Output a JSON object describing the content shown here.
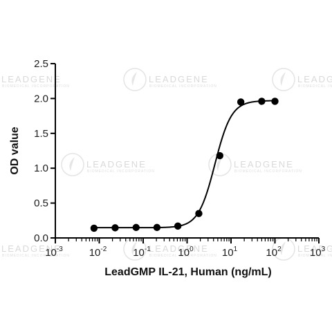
{
  "chart_data": {
    "type": "scatter",
    "xlabel": "LeadGMP IL-21, Human (ng/mL)",
    "ylabel": "OD value",
    "xscale": "log",
    "xlim": [
      0.001,
      1000
    ],
    "ylim": [
      0,
      2.5
    ],
    "x_ticks": [
      {
        "base": "10",
        "exp": "-3",
        "value": 0.001
      },
      {
        "base": "10",
        "exp": "-2",
        "value": 0.01
      },
      {
        "base": "10",
        "exp": "-1",
        "value": 0.1
      },
      {
        "base": "10",
        "exp": "0",
        "value": 1
      },
      {
        "base": "10",
        "exp": "1",
        "value": 10
      },
      {
        "base": "10",
        "exp": "2",
        "value": 100
      },
      {
        "base": "10",
        "exp": "3",
        "value": 1000
      }
    ],
    "y_ticks": [
      "0.0",
      "0.5",
      "1.0",
      "1.5",
      "2.0",
      "2.5"
    ],
    "series": [
      {
        "points": [
          {
            "x": 0.0076,
            "y": 0.14
          },
          {
            "x": 0.023,
            "y": 0.145
          },
          {
            "x": 0.069,
            "y": 0.15
          },
          {
            "x": 0.206,
            "y": 0.15
          },
          {
            "x": 0.617,
            "y": 0.17
          },
          {
            "x": 1.85,
            "y": 0.35
          },
          {
            "x": 5.56,
            "y": 1.18
          },
          {
            "x": 16.7,
            "y": 1.95
          },
          {
            "x": 50,
            "y": 1.96
          },
          {
            "x": 100,
            "y": 1.96
          }
        ],
        "fit": {
          "model": "4PL",
          "bottom": 0.147,
          "top": 1.97,
          "ec50": 4.3,
          "hill": 2.3
        },
        "color": "#000000"
      }
    ],
    "grid": false,
    "legend": "none"
  },
  "watermark": {
    "text": "LEADGENE",
    "subtext": "BIOMEDICAL INCORPORATION"
  }
}
